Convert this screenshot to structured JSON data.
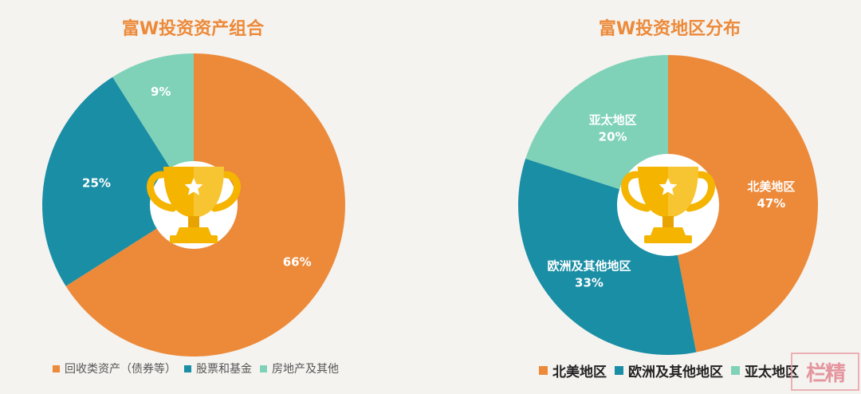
{
  "chart_data": [
    {
      "type": "pie",
      "title": "富W投资资产组合",
      "colors": [
        "#ec8a3a",
        "#1a8ea5",
        "#7fd2b8"
      ],
      "slices": [
        {
          "label": "回收类资产（债券等）",
          "value": 66,
          "text": "66%"
        },
        {
          "label": "股票和基金",
          "value": 25,
          "text": "25%"
        },
        {
          "label": "房地产及其他",
          "value": 9,
          "text": "9%"
        }
      ]
    },
    {
      "type": "pie",
      "title": "富W投资地区分布",
      "colors": [
        "#ec8a3a",
        "#1a8ea5",
        "#7fd2b8"
      ],
      "slices": [
        {
          "label": "北美地区",
          "value": 47,
          "text": "47%"
        },
        {
          "label": "欧洲及其他地区",
          "value": 33,
          "text": "33%"
        },
        {
          "label": "亚太地区",
          "value": 20,
          "text": "20%"
        }
      ]
    }
  ],
  "icons": {
    "center": "trophy-icon"
  },
  "stamp_text": "栏精"
}
